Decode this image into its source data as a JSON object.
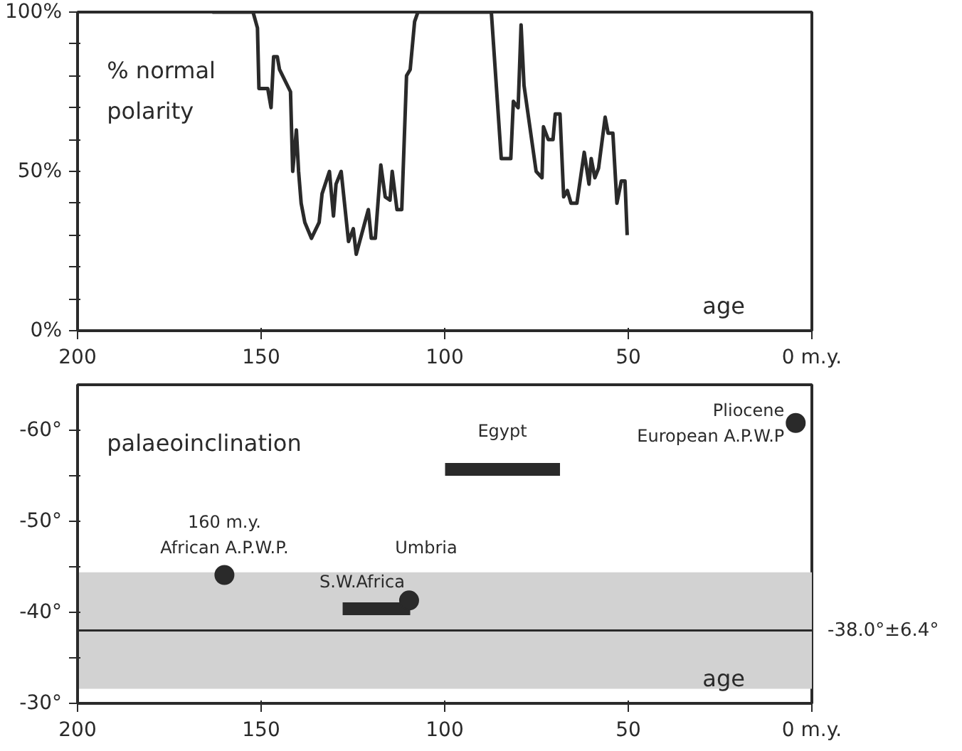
{
  "chart_data": [
    {
      "type": "line",
      "xlim": [
        200,
        0
      ],
      "ylim": [
        0,
        100
      ],
      "xticks": [
        200,
        150,
        100,
        50,
        {
          "value": 0,
          "label": "0 m.y."
        }
      ],
      "yticks": [
        {
          "value": 0,
          "label": "0%"
        },
        {
          "value": 10,
          "label": null
        },
        {
          "value": 20,
          "label": null
        },
        {
          "value": 30,
          "label": null
        },
        {
          "value": 40,
          "label": null
        },
        {
          "value": 50,
          "label": "50%"
        },
        {
          "value": 60,
          "label": null
        },
        {
          "value": 70,
          "label": null
        },
        {
          "value": 80,
          "label": null
        },
        {
          "value": 90,
          "label": null
        },
        {
          "value": 100,
          "label": "100%"
        }
      ],
      "grid": false,
      "marker": "none",
      "line_style": "solid",
      "annotations": [
        "% normal\npolarity",
        "age"
      ],
      "series": [
        {
          "color": "#2a2a2a",
          "x": [
            163.3,
            152.2,
            151,
            150.6,
            148.2,
            147.3,
            146.6,
            145.6,
            145,
            142,
            141.4,
            140.4,
            139.8,
            139.1,
            138.1,
            136.3,
            134.2,
            133.4,
            131.4,
            130.3,
            129.6,
            128.2,
            126.2,
            124.9,
            124.1,
            120.8,
            120,
            118.9,
            117.4,
            116.2,
            114.9,
            114.3,
            113,
            111.7,
            110.4,
            109.4,
            108.2,
            107.3,
            87.3,
            84.6,
            82,
            81.3,
            80,
            79.2,
            78.4,
            75.1,
            73.5,
            73.1,
            71.8,
            70.5,
            69.9,
            68.6,
            67.6,
            66.6,
            65.6,
            64,
            62,
            60.7,
            60.1,
            59.1,
            58.1,
            56.3,
            55.5,
            54.2,
            53.1,
            51.9,
            50.9,
            50.3
          ],
          "values": [
            100,
            100,
            95,
            76,
            76,
            70,
            86,
            86,
            82,
            75,
            50,
            63,
            50,
            40,
            34,
            29,
            34,
            43,
            50,
            36,
            46,
            50,
            28,
            32,
            24,
            38,
            29,
            29,
            52,
            42,
            41,
            50,
            38,
            38,
            80,
            82,
            97,
            100,
            100,
            54,
            54,
            72,
            70,
            96,
            77,
            50,
            48,
            64,
            60,
            60,
            68,
            68,
            42,
            44,
            40,
            40,
            56,
            46,
            54,
            48,
            51,
            67,
            62,
            62,
            40,
            47,
            47,
            30
          ]
        }
      ]
    },
    {
      "type": "line",
      "xlim": [
        200,
        0
      ],
      "ylim": [
        -30,
        -65
      ],
      "xticks": [
        200,
        150,
        100,
        50,
        {
          "value": 0,
          "label": "0 m.y."
        }
      ],
      "yticks": [
        {
          "value": -30,
          "label": "-30°"
        },
        {
          "value": -35,
          "label": null
        },
        {
          "value": -40,
          "label": "-40°"
        },
        {
          "value": -45,
          "label": null
        },
        {
          "value": -50,
          "label": "-50°"
        },
        {
          "value": -55,
          "label": null
        },
        {
          "value": -60,
          "label": "-60°"
        }
      ],
      "grid": false,
      "bands": [
        {
          "axis": "y",
          "from": -31.6,
          "to": -44.4,
          "color": "#d2d2d2"
        }
      ],
      "ref_lines": [
        {
          "axis": "y",
          "value": -38.0,
          "label": "-38.0°±6.4°",
          "color": "#2a2a2a",
          "line_style": "solid"
        }
      ],
      "annotations": [
        "palaeoinclination",
        "age",
        {
          "text": "160 m.y.\nAfrican A.P.W.P.",
          "x": 160,
          "y": -44.1
        },
        {
          "text": "S.W.Africa",
          "x": 118.6,
          "y": -40.4
        },
        {
          "text": "Umbria",
          "x": 109.7,
          "y": -41.3
        },
        {
          "text": "Egypt",
          "x": 84.3,
          "y": -55.7
        },
        {
          "text": "Pliocene\nEuropean A.P.W.P",
          "x": 4.4,
          "y": -60.8
        }
      ],
      "series": [
        {
          "type": "line",
          "color": "#2a2a2a",
          "x": [
            127.8,
            109.4
          ],
          "values": [
            -40.4,
            -40.4
          ]
        },
        {
          "type": "line",
          "color": "#2a2a2a",
          "x": [
            99.9,
            68.6
          ],
          "values": [
            -55.7,
            -55.7
          ]
        },
        {
          "type": "scatter",
          "marker": "circle",
          "color": "#2a2a2a",
          "x": [
            160,
            109.7,
            4.4
          ],
          "values": [
            -44.1,
            -41.3,
            -60.8
          ]
        }
      ]
    }
  ]
}
